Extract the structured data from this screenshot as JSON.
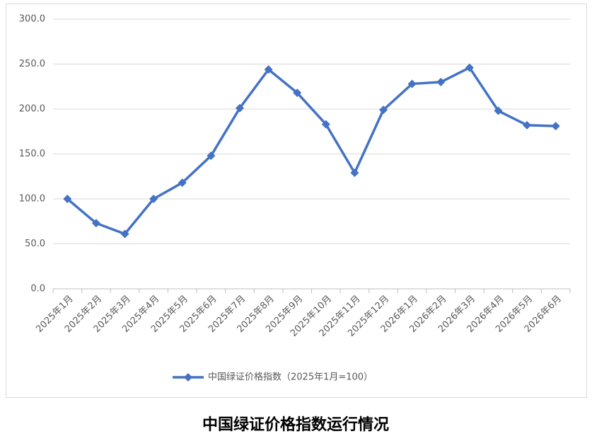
{
  "chart_data": {
    "type": "line",
    "title": "中国绿证价格指数运行情况",
    "categories": [
      "2025年1月",
      "2025年2月",
      "2025年3月",
      "2025年4月",
      "2025年5月",
      "2025年6月",
      "2025年7月",
      "2025年8月",
      "2025年9月",
      "2025年10月",
      "2025年11月",
      "2025年12月",
      "2026年1月",
      "2026年2月",
      "2026年3月",
      "2026年4月",
      "2026年5月",
      "2026年6月"
    ],
    "series": [
      {
        "name": "中国绿证价格指数（2025年1月=100）",
        "color": "#4472c4",
        "values": [
          100,
          73,
          61,
          100,
          118,
          148,
          201,
          244,
          218,
          183,
          129,
          199,
          228,
          230,
          246,
          198,
          182,
          181
        ]
      }
    ],
    "ylim": [
      0,
      300
    ],
    "yticks": [
      {
        "value": 0,
        "label": "0.0"
      },
      {
        "value": 50,
        "label": "50.0"
      },
      {
        "value": 100,
        "label": "100.0"
      },
      {
        "value": 150,
        "label": "150.0"
      },
      {
        "value": 200,
        "label": "200.0"
      },
      {
        "value": 250,
        "label": "250.0"
      },
      {
        "value": 300,
        "label": "300.0"
      }
    ],
    "grid": true,
    "legend": "bottom"
  }
}
